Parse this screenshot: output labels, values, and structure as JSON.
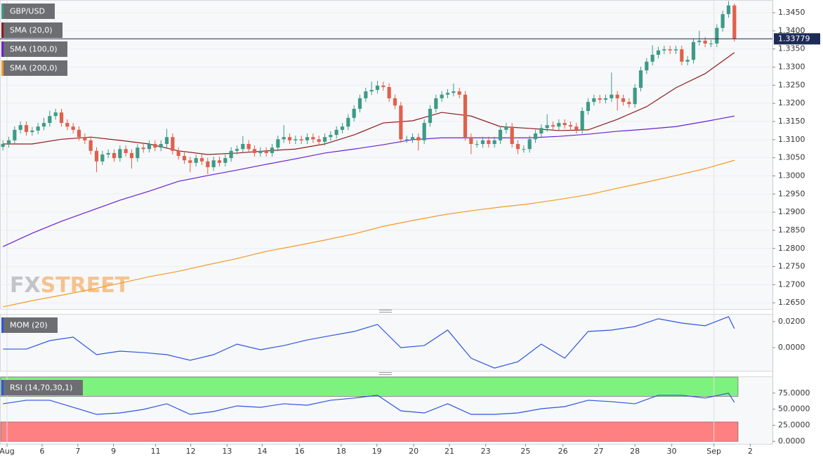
{
  "chart_data": [
    {
      "type": "candlestick",
      "name": "GBP/USD",
      "color_up": "#3d9b87",
      "color_down": "#e0604c",
      "open": [
        1.308,
        1.3088,
        1.3098,
        1.3127,
        1.314,
        1.3121,
        1.3125,
        1.3136,
        1.3146,
        1.3165,
        1.3175,
        1.3146,
        1.3136,
        1.3127,
        1.3107,
        1.3098,
        1.3069,
        1.304,
        1.3059,
        1.3063,
        1.3049,
        1.3074,
        1.3063,
        1.3049,
        1.3078,
        1.3074,
        1.3088,
        1.3078,
        1.3088,
        1.3107,
        1.3069,
        1.3055,
        1.3043,
        1.3036,
        1.3049,
        1.304,
        1.3024,
        1.3043,
        1.3036,
        1.3049,
        1.3069,
        1.3074,
        1.3088,
        1.3074,
        1.3063,
        1.3069,
        1.3063,
        1.3078,
        1.3101,
        1.3107,
        1.3098,
        1.3101,
        1.3098,
        1.3107,
        1.3101,
        1.3094,
        1.3107,
        1.3113,
        1.3127,
        1.3136,
        1.316,
        1.3185,
        1.3214,
        1.3233,
        1.3237,
        1.3249,
        1.3245,
        1.3214,
        1.3194,
        1.3101,
        1.3101,
        1.3107,
        1.3098,
        1.3146,
        1.3185,
        1.3214,
        1.3224,
        1.3229,
        1.3233,
        1.3224,
        1.3107,
        1.3088,
        1.3088,
        1.3098,
        1.3088,
        1.3098,
        1.3127,
        1.3136,
        1.3088,
        1.3074,
        1.3074,
        1.3101,
        1.3117,
        1.3132,
        1.314,
        1.3136,
        1.3146,
        1.314,
        1.3136,
        1.3127,
        1.3179,
        1.3204,
        1.3214,
        1.321,
        1.3214,
        1.3224,
        1.3214,
        1.3204,
        1.3198,
        1.3243,
        1.3291,
        1.3315,
        1.3334,
        1.3346,
        1.3349,
        1.3346,
        1.3349,
        1.3315,
        1.332,
        1.3369,
        1.3373,
        1.3365,
        1.3365,
        1.3408,
        1.3446,
        1.347
      ],
      "high": [
        1.3098,
        1.3108,
        1.3137,
        1.315,
        1.315,
        1.3135,
        1.3146,
        1.316,
        1.318,
        1.3185,
        1.3185,
        1.3156,
        1.3146,
        1.3137,
        1.3117,
        1.3108,
        1.3079,
        1.3069,
        1.3073,
        1.3073,
        1.3084,
        1.3084,
        1.3073,
        1.3088,
        1.3088,
        1.3098,
        1.3098,
        1.3098,
        1.313,
        1.3117,
        1.3079,
        1.3065,
        1.3053,
        1.3059,
        1.3059,
        1.305,
        1.3053,
        1.3053,
        1.3059,
        1.3079,
        1.3084,
        1.311,
        1.3098,
        1.3084,
        1.3079,
        1.3079,
        1.3088,
        1.3111,
        1.314,
        1.3117,
        1.3111,
        1.3111,
        1.3117,
        1.3117,
        1.3111,
        1.3117,
        1.3123,
        1.3137,
        1.3146,
        1.317,
        1.3195,
        1.3224,
        1.3243,
        1.326,
        1.3262,
        1.326,
        1.3255,
        1.3224,
        1.3204,
        1.3111,
        1.3117,
        1.3117,
        1.3156,
        1.3195,
        1.3224,
        1.3234,
        1.3239,
        1.3255,
        1.3243,
        1.3234,
        1.3117,
        1.3098,
        1.3108,
        1.3108,
        1.3108,
        1.3137,
        1.3146,
        1.3146,
        1.3098,
        1.3084,
        1.3111,
        1.3127,
        1.3142,
        1.317,
        1.315,
        1.3156,
        1.3156,
        1.315,
        1.3146,
        1.3189,
        1.3214,
        1.3224,
        1.3224,
        1.3224,
        1.3285,
        1.3234,
        1.3224,
        1.3214,
        1.3253,
        1.3301,
        1.3325,
        1.336,
        1.3356,
        1.3359,
        1.3359,
        1.3359,
        1.3359,
        1.333,
        1.3379,
        1.34,
        1.3383,
        1.3375,
        1.3418,
        1.3456,
        1.3482,
        1.3475
      ],
      "low": [
        1.307,
        1.3078,
        1.3088,
        1.3117,
        1.3111,
        1.3111,
        1.3115,
        1.3126,
        1.3136,
        1.3155,
        1.3136,
        1.3126,
        1.3117,
        1.3097,
        1.3088,
        1.3059,
        1.301,
        1.303,
        1.3049,
        1.3039,
        1.3039,
        1.3053,
        1.302,
        1.3039,
        1.3064,
        1.3064,
        1.3068,
        1.3068,
        1.3078,
        1.3059,
        1.3045,
        1.3033,
        1.301,
        1.3026,
        1.303,
        1.3005,
        1.3014,
        1.3026,
        1.3026,
        1.3039,
        1.3059,
        1.3064,
        1.3064,
        1.3053,
        1.3053,
        1.3053,
        1.3053,
        1.3068,
        1.3091,
        1.3088,
        1.3088,
        1.3088,
        1.3088,
        1.3091,
        1.3084,
        1.3084,
        1.3097,
        1.3103,
        1.3117,
        1.3126,
        1.315,
        1.3175,
        1.3204,
        1.3223,
        1.3227,
        1.3235,
        1.3204,
        1.3184,
        1.3091,
        1.3091,
        1.3091,
        1.307,
        1.3088,
        1.3136,
        1.3175,
        1.3204,
        1.3214,
        1.3219,
        1.3214,
        1.3097,
        1.306,
        1.3078,
        1.3078,
        1.3078,
        1.3078,
        1.3088,
        1.3117,
        1.3078,
        1.306,
        1.3064,
        1.3064,
        1.3091,
        1.3107,
        1.3122,
        1.3126,
        1.3126,
        1.313,
        1.3126,
        1.3117,
        1.3117,
        1.3169,
        1.3194,
        1.32,
        1.32,
        1.3204,
        1.318,
        1.3194,
        1.3188,
        1.3188,
        1.3233,
        1.3281,
        1.3305,
        1.3324,
        1.3336,
        1.3336,
        1.3336,
        1.3305,
        1.3305,
        1.331,
        1.3359,
        1.3355,
        1.3355,
        1.3355,
        1.3398,
        1.3436,
        1.337
      ],
      "close": [
        1.3088,
        1.3098,
        1.3127,
        1.314,
        1.3121,
        1.3125,
        1.3136,
        1.3146,
        1.3165,
        1.3175,
        1.3146,
        1.3136,
        1.3127,
        1.3107,
        1.3098,
        1.3069,
        1.304,
        1.3059,
        1.3063,
        1.3049,
        1.3074,
        1.3063,
        1.3049,
        1.3078,
        1.3074,
        1.3088,
        1.3078,
        1.3088,
        1.3107,
        1.3069,
        1.3055,
        1.3043,
        1.3036,
        1.3049,
        1.304,
        1.3024,
        1.3043,
        1.3036,
        1.3049,
        1.3069,
        1.3074,
        1.3088,
        1.3074,
        1.3063,
        1.3069,
        1.3063,
        1.3078,
        1.3101,
        1.3107,
        1.3098,
        1.3101,
        1.3098,
        1.3107,
        1.3101,
        1.3094,
        1.3107,
        1.3113,
        1.3127,
        1.3136,
        1.316,
        1.3185,
        1.3214,
        1.3233,
        1.3237,
        1.3249,
        1.3245,
        1.3214,
        1.3194,
        1.3101,
        1.3101,
        1.3107,
        1.3098,
        1.3146,
        1.3185,
        1.3214,
        1.3224,
        1.3229,
        1.3233,
        1.3224,
        1.3107,
        1.3088,
        1.3088,
        1.3098,
        1.3088,
        1.3098,
        1.3127,
        1.3136,
        1.3088,
        1.3074,
        1.3074,
        1.3101,
        1.3117,
        1.3132,
        1.314,
        1.3136,
        1.3146,
        1.314,
        1.3136,
        1.3127,
        1.3179,
        1.3204,
        1.3214,
        1.321,
        1.3214,
        1.3224,
        1.3214,
        1.3204,
        1.3198,
        1.3243,
        1.3291,
        1.3315,
        1.3334,
        1.3346,
        1.3349,
        1.3346,
        1.3349,
        1.3315,
        1.332,
        1.3369,
        1.3373,
        1.3365,
        1.3365,
        1.3408,
        1.3446,
        1.347,
        1.3378
      ],
      "series": [
        {
          "name": "SMA (20,0)",
          "color": "#8b1c1c",
          "x": [
            0,
            5,
            10,
            15,
            20,
            25,
            30,
            35,
            40,
            45,
            50,
            55,
            60,
            65,
            70,
            75,
            80,
            85,
            90,
            95,
            100,
            105,
            110,
            115,
            120,
            125
          ],
          "values": [
            1.3088,
            1.3088,
            1.3101,
            1.3107,
            1.3098,
            1.3088,
            1.3069,
            1.3059,
            1.3063,
            1.3069,
            1.3074,
            1.3088,
            1.3113,
            1.3146,
            1.3152,
            1.3175,
            1.3165,
            1.3136,
            1.3131,
            1.3125,
            1.3127,
            1.3156,
            1.3191,
            1.3243,
            1.3282,
            1.334
          ]
        },
        {
          "name": "SMA (100,0)",
          "color": "#6a1fd1",
          "x": [
            0,
            5,
            10,
            15,
            20,
            25,
            30,
            35,
            40,
            45,
            50,
            55,
            60,
            65,
            70,
            75,
            80,
            85,
            90,
            95,
            100,
            105,
            110,
            115,
            120,
            125
          ],
          "values": [
            1.2805,
            1.2842,
            1.2875,
            1.2904,
            1.2933,
            1.2958,
            1.2985,
            1.3001,
            1.3016,
            1.3032,
            1.3047,
            1.3063,
            1.3074,
            1.3086,
            1.31,
            1.3105,
            1.3105,
            1.3105,
            1.3105,
            1.3109,
            1.3115,
            1.3123,
            1.3129,
            1.3136,
            1.315,
            1.3165
          ]
        },
        {
          "name": "SMA (200,0)",
          "color": "#f29b26",
          "x": [
            0,
            5,
            10,
            15,
            20,
            25,
            30,
            35,
            40,
            45,
            50,
            55,
            60,
            65,
            70,
            75,
            80,
            85,
            90,
            95,
            100,
            105,
            110,
            115,
            120,
            125
          ],
          "values": [
            1.2639,
            1.2656,
            1.2671,
            1.2687,
            1.2704,
            1.2722,
            1.2737,
            1.2755,
            1.2772,
            1.2792,
            1.2807,
            1.2823,
            1.284,
            1.2861,
            1.2877,
            1.2892,
            1.2904,
            1.2914,
            1.2923,
            1.2935,
            1.2948,
            1.2966,
            1.2983,
            1.3001,
            1.302,
            1.3043
          ]
        }
      ],
      "ylim": [
        1.2633,
        1.3485
      ],
      "yticks": [
        {
          "value": 1.265,
          "label": "1.2650"
        },
        {
          "value": 1.27,
          "label": "1.2700"
        },
        {
          "value": 1.275,
          "label": "1.2750"
        },
        {
          "value": 1.28,
          "label": "1.2800"
        },
        {
          "value": 1.285,
          "label": "1.2850"
        },
        {
          "value": 1.29,
          "label": "1.2900"
        },
        {
          "value": 1.295,
          "label": "1.2950"
        },
        {
          "value": 1.3,
          "label": "1.3000"
        },
        {
          "value": 1.305,
          "label": "1.3050"
        },
        {
          "value": 1.31,
          "label": "1.3100"
        },
        {
          "value": 1.315,
          "label": "1.3150"
        },
        {
          "value": 1.32,
          "label": "1.3200"
        },
        {
          "value": 1.325,
          "label": "1.3250"
        },
        {
          "value": 1.33,
          "label": "1.3300"
        },
        {
          "value": 1.335,
          "label": "1.3350"
        },
        {
          "value": 1.34,
          "label": "1.3400"
        },
        {
          "value": 1.345,
          "label": "1.3450"
        }
      ],
      "xlim": [
        -0.5,
        131.5
      ],
      "xticks": [
        {
          "value": 0.7,
          "label": "Aug"
        },
        {
          "value": 6.7,
          "label": "6"
        },
        {
          "value": 12.8,
          "label": "7"
        },
        {
          "value": 18.9,
          "label": "9"
        },
        {
          "value": 26.1,
          "label": "11"
        },
        {
          "value": 32.1,
          "label": "12"
        },
        {
          "value": 38.3,
          "label": "13"
        },
        {
          "value": 44.3,
          "label": "14"
        },
        {
          "value": 50.7,
          "label": "16"
        },
        {
          "value": 57.8,
          "label": "18"
        },
        {
          "value": 63.9,
          "label": "19"
        },
        {
          "value": 70.2,
          "label": "20"
        },
        {
          "value": 76.3,
          "label": "21"
        },
        {
          "value": 82.5,
          "label": "23"
        },
        {
          "value": 89.3,
          "label": "25"
        },
        {
          "value": 95.7,
          "label": "26"
        },
        {
          "value": 101.8,
          "label": "27"
        },
        {
          "value": 108,
          "label": "28"
        },
        {
          "value": 114.3,
          "label": "30"
        },
        {
          "value": 121.5,
          "label": "Sep"
        },
        {
          "value": 127.7,
          "label": "2"
        }
      ],
      "last_price": {
        "value": 1.33779,
        "label": "1.33779"
      },
      "watermark": [
        "FX",
        "STREET"
      ],
      "grid": true
    },
    {
      "type": "line",
      "series": [
        {
          "name": "MOM (20)",
          "color": "#2d55e0",
          "x": [
            0,
            4,
            8,
            12,
            16,
            20,
            24,
            28,
            32,
            36,
            40,
            44,
            48,
            52,
            56,
            60,
            64,
            68,
            72,
            76,
            80,
            84,
            88,
            92,
            96,
            100,
            104,
            108,
            112,
            116,
            120,
            124,
            125
          ],
          "values": [
            -0.0011,
            -0.0011,
            0.0054,
            0.0081,
            -0.0054,
            -0.0027,
            -0.0038,
            -0.0054,
            -0.0097,
            -0.0054,
            0.0027,
            -0.0016,
            0.0016,
            0.0059,
            0.0092,
            0.0124,
            0.0178,
            0.0,
            0.0016,
            0.0135,
            -0.0081,
            -0.0157,
            -0.0108,
            0.0027,
            -0.0081,
            0.0124,
            0.0135,
            0.0162,
            0.0222,
            0.0189,
            0.0168,
            0.0238,
            0.0146
          ]
        }
      ],
      "ylim": [
        -0.0178,
        0.0259
      ],
      "yticks": [
        {
          "value": 0.02,
          "label": "0.0200"
        },
        {
          "value": 0,
          "label": "0.0000"
        }
      ],
      "grid": false
    },
    {
      "type": "line",
      "series": [
        {
          "name": "RSI (14,70,30,1)",
          "color": "#2d55e0",
          "x": [
            0,
            4,
            8,
            12,
            16,
            20,
            24,
            28,
            32,
            36,
            40,
            44,
            48,
            52,
            56,
            60,
            64,
            68,
            72,
            76,
            80,
            84,
            88,
            92,
            96,
            100,
            104,
            108,
            112,
            116,
            120,
            124,
            125
          ],
          "values": [
            58.4,
            63.9,
            63.9,
            52.9,
            41.9,
            44.1,
            49.6,
            58.4,
            41.9,
            46.3,
            55.1,
            52.9,
            58.4,
            56.2,
            63.9,
            67.3,
            71.7,
            47.4,
            44.1,
            58.4,
            41.9,
            41.9,
            44.1,
            50.7,
            54.0,
            63.9,
            61.7,
            58.4,
            71.7,
            71.7,
            67.3,
            75.0,
            60.6
          ]
        }
      ],
      "zones": [
        {
          "from": 70,
          "to": 100,
          "color": "#7ef27e"
        },
        {
          "from": 0,
          "to": 30,
          "color": "#ff8080"
        }
      ],
      "ylim": [
        -4,
        101
      ],
      "yticks": [
        {
          "value": 75,
          "label": "75.0000"
        },
        {
          "value": 50,
          "label": "50.0000"
        },
        {
          "value": 25,
          "label": "25.0000"
        },
        {
          "value": 0,
          "label": "0.0000"
        }
      ],
      "grid": false
    }
  ]
}
